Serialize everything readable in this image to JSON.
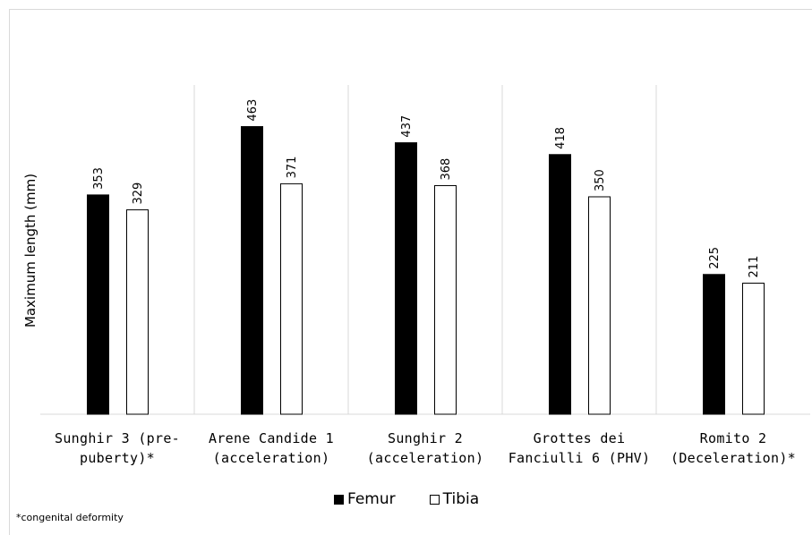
{
  "chart_data": {
    "type": "bar",
    "categories": [
      [
        "Sunghir 3 (pre-",
        "puberty)*"
      ],
      [
        "Arene Candide 1",
        "(acceleration)"
      ],
      [
        "Sunghir 2",
        "(acceleration)"
      ],
      [
        "Grottes dei",
        "Fanciulli 6 (PHV)"
      ],
      [
        "Romito 2",
        "(Deceleration)*"
      ]
    ],
    "series": [
      {
        "name": "Femur",
        "values": [
          353,
          463,
          437,
          418,
          225
        ],
        "fill": "#000000",
        "stroke": "#000000"
      },
      {
        "name": "Tibia",
        "values": [
          329,
          371,
          368,
          350,
          211
        ],
        "fill": "#ffffff",
        "stroke": "#000000"
      }
    ],
    "ylabel": "Maximum length (mm)",
    "ylim": [
      0,
      530
    ],
    "grid": false,
    "legend_position": "bottom",
    "footnote": "*congenital deformity"
  }
}
